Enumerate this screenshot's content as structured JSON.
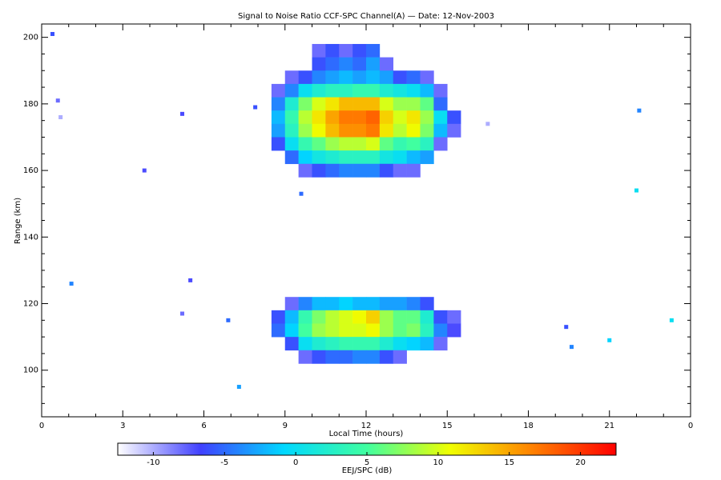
{
  "chart_data": {
    "type": "heatmap",
    "title": "Signal to Noise Ratio CCF-SPC Channel(A) — Date: 12-Nov-2003",
    "x_label": "Local Time (hours)",
    "y_label": "Range (km)",
    "colorbar_label": "EEJ/SPC (dB)",
    "xlim": [
      0,
      24
    ],
    "ylim": [
      86,
      204
    ],
    "xticks": [
      0,
      3,
      6,
      9,
      12,
      15,
      18,
      21,
      {
        "value": 24,
        "label": "0"
      }
    ],
    "yticks": [
      100,
      120,
      140,
      160,
      180,
      200
    ],
    "xminorticks": [
      1,
      2,
      4,
      5,
      7,
      8,
      10,
      11,
      13,
      14,
      16,
      17,
      19,
      20,
      22,
      23
    ],
    "yminorticks": [
      90,
      95,
      105,
      110,
      115,
      125,
      130,
      135,
      145,
      150,
      155,
      165,
      170,
      175,
      185,
      190,
      195
    ],
    "clim": [
      -12.5,
      22.5
    ],
    "cticks": [
      -10,
      -5,
      0,
      5,
      10,
      15,
      20
    ],
    "colormap": [
      "#ffffff",
      "#4040ff",
      "#00d8ff",
      "#40ffa0",
      "#f0ff00",
      "#ff8000",
      "#ff0000"
    ],
    "x_edges": [
      8.5,
      9,
      9.5,
      10,
      10.5,
      11,
      11.5,
      12,
      12.5,
      13,
      13.5,
      14,
      14.5,
      15,
      15.5
    ],
    "blocks": [
      {
        "y_edges": [
          198,
          194,
          190,
          186,
          182,
          178,
          174,
          170,
          166,
          162,
          158
        ],
        "values": [
          [
            null,
            null,
            null,
            -8,
            -6,
            -8,
            -6,
            -5,
            null,
            null,
            null,
            null,
            null,
            null
          ],
          [
            null,
            null,
            null,
            -6,
            -5,
            -4,
            -5,
            -3,
            -8,
            null,
            null,
            null,
            null,
            null
          ],
          [
            null,
            -8,
            -6,
            -4,
            -3,
            -2,
            -3,
            -2,
            -3,
            -6,
            -5,
            -8,
            null,
            null
          ],
          [
            -8,
            -4,
            0,
            2,
            3,
            3,
            4,
            4,
            2,
            1,
            0,
            -2,
            -8,
            null
          ],
          [
            -4,
            2,
            7,
            10,
            12,
            14,
            14,
            14,
            10,
            8,
            8,
            6,
            -5,
            null
          ],
          [
            -2,
            4,
            9,
            12,
            15,
            17,
            17,
            18,
            13,
            10,
            12,
            8,
            0,
            -6
          ],
          [
            -3,
            3,
            8,
            11,
            14,
            16,
            16,
            17,
            12,
            9,
            11,
            7,
            -2,
            -8
          ],
          [
            -6,
            0,
            4,
            6,
            8,
            9,
            9,
            10,
            6,
            4,
            5,
            3,
            -8,
            null
          ],
          [
            null,
            -5,
            -1,
            1,
            2,
            3,
            3,
            3,
            1,
            0,
            -2,
            -3,
            null,
            null
          ],
          [
            null,
            null,
            -8,
            -6,
            -5,
            -4,
            -4,
            -4,
            -6,
            -8,
            -8,
            null,
            null,
            null
          ]
        ]
      },
      {
        "y_edges": [
          122,
          118,
          114,
          110,
          106,
          102
        ],
        "values": [
          [
            null,
            -8,
            -4,
            -2,
            -2,
            -1,
            -2,
            -2,
            -3,
            -3,
            -4,
            -6,
            null,
            null
          ],
          [
            -6,
            -2,
            4,
            7,
            9,
            10,
            11,
            13,
            8,
            6,
            6,
            2,
            -6,
            -8
          ],
          [
            -5,
            -1,
            5,
            8,
            9,
            10,
            10,
            11,
            8,
            6,
            7,
            3,
            -4,
            -7
          ],
          [
            null,
            -6,
            0,
            2,
            3,
            4,
            4,
            4,
            2,
            0,
            -1,
            -2,
            -8,
            null
          ],
          [
            null,
            null,
            -8,
            -6,
            -5,
            -5,
            -4,
            -4,
            -6,
            -8,
            null,
            null,
            null,
            null
          ]
        ]
      }
    ],
    "points": {
      "x": [
        0.4,
        5.2,
        7.9,
        9.6,
        3.8,
        1.1,
        6.9,
        7.3,
        22.0,
        21.0,
        23.3,
        22.1,
        19.6,
        19.4,
        5.2,
        16.5,
        5.5,
        0.7,
        0.6
      ],
      "y": [
        201,
        177,
        179,
        153,
        160,
        126,
        115,
        95,
        154,
        109,
        115,
        178,
        107,
        113,
        117,
        174,
        127,
        176,
        181
      ],
      "values": [
        -6,
        -7,
        -6,
        -5,
        -7,
        -4,
        -5,
        -3,
        0,
        -1,
        0,
        -4,
        -4,
        -6,
        -8,
        -10,
        -7,
        -10,
        -8
      ]
    }
  }
}
